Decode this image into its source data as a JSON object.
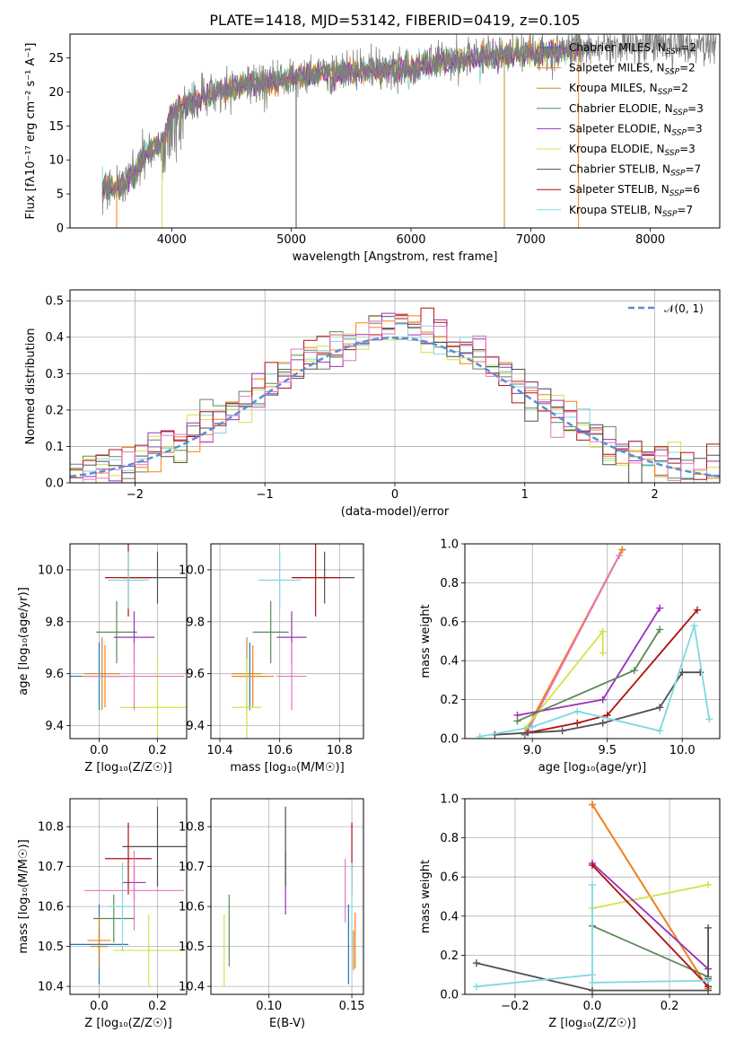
{
  "title": "PLATE=1418, MJD=53142, FIBERID=0419, z=0.105",
  "colors": {
    "Chabrier MILES": "#1f77b4",
    "Salpeter MILES": "#ff7f0e",
    "Kroupa MILES": "#c88a2a",
    "Chabrier ELODIE": "#5a8a5a",
    "Salpeter ELODIE": "#9b30b8",
    "Kroupa ELODIE": "#d4e04a",
    "Chabrier STELIB": "#505050",
    "Salpeter STELIB": "#b01010",
    "Kroupa STELIB": "#7fd8e0",
    "pink": "#e377c2",
    "gaussian": "#5b8fd4",
    "observed": "#808080"
  },
  "chart_data": [
    {
      "id": "spectrum",
      "type": "line",
      "xlabel": "wavelength [Angstrom, rest frame]",
      "ylabel": "Flux [fλ10⁻¹⁷ erg cm⁻² s⁻¹ A⁻¹]",
      "xlim": [
        3150,
        8580
      ],
      "ylim": [
        0,
        28.5
      ],
      "xticks": [
        "4000",
        "5000",
        "6000",
        "7000",
        "8000"
      ],
      "xtick_values": [
        4000,
        5000,
        6000,
        7000,
        8000
      ],
      "yticks": [
        "0",
        "5",
        "10",
        "15",
        "20",
        "25"
      ],
      "ytick_values": [
        0,
        5,
        10,
        15,
        20,
        25
      ],
      "legend": [
        {
          "label": "Chabrier MILES, N",
          "sub": "SSP",
          "tail": "=2"
        },
        {
          "label": "Salpeter MILES, N",
          "sub": "SSP",
          "tail": "=2"
        },
        {
          "label": "Kroupa MILES, N",
          "sub": "SSP",
          "tail": "=2"
        },
        {
          "label": "Chabrier ELODIE, N",
          "sub": "SSP",
          "tail": "=3"
        },
        {
          "label": "Salpeter ELODIE, N",
          "sub": "SSP",
          "tail": "=3"
        },
        {
          "label": "Kroupa ELODIE, N",
          "sub": "SSP",
          "tail": "=3"
        },
        {
          "label": "Chabrier STELIB, N",
          "sub": "SSP",
          "tail": "=7"
        },
        {
          "label": "Salpeter STELIB, N",
          "sub": "SSP",
          "tail": "=6"
        },
        {
          "label": "Kroupa STELIB, N",
          "sub": "SSP",
          "tail": "=7"
        }
      ],
      "legend_placement": "right",
      "continuum_points": [
        [
          3420,
          5.6
        ],
        [
          3600,
          6.2
        ],
        [
          3800,
          11
        ],
        [
          3920,
          12.5
        ],
        [
          4000,
          17
        ],
        [
          4300,
          19.5
        ],
        [
          4600,
          21
        ],
        [
          5000,
          22
        ],
        [
          5200,
          22.7
        ],
        [
          5600,
          23
        ],
        [
          6000,
          23.5
        ],
        [
          6500,
          25
        ],
        [
          7000,
          25.6
        ],
        [
          7500,
          26.4
        ],
        [
          8000,
          27
        ],
        [
          8550,
          26.6
        ]
      ]
    },
    {
      "id": "residuals",
      "type": "histogram",
      "xlabel": "(data-model)/error",
      "ylabel": "Normed distribution",
      "xlim": [
        -2.5,
        2.5
      ],
      "ylim": [
        0,
        0.53
      ],
      "xticks": [
        "−2",
        "−1",
        "0",
        "1",
        "2"
      ],
      "xtick_values": [
        -2,
        -1,
        0,
        1,
        2
      ],
      "yticks": [
        "0.0",
        "0.1",
        "0.2",
        "0.3",
        "0.4",
        "0.5"
      ],
      "ytick_values": [
        0,
        0.1,
        0.2,
        0.3,
        0.4,
        0.5
      ],
      "legend": [
        {
          "label": "𝒩(0, 1)"
        }
      ],
      "legend_placement": "top-right",
      "grid": true
    },
    {
      "id": "age_vs_Z",
      "type": "errorbar",
      "xlabel": "Z [log₁₀(Z/Z☉)]",
      "ylabel": "age  [log₁₀(age/yr)]",
      "xlim": [
        -0.1,
        0.3
      ],
      "ylim": [
        9.35,
        10.1
      ],
      "xticks": [
        "0.0",
        "0.2"
      ],
      "xtick_values": [
        0.0,
        0.2
      ],
      "yticks": [
        "9.4",
        "9.6",
        "9.8",
        "10.0"
      ],
      "ytick_values": [
        9.4,
        9.6,
        9.8,
        10.0
      ],
      "grid": true,
      "points": [
        {
          "c": "Chabrier MILES",
          "x": 0.0,
          "y": 9.59,
          "xe": 0.1,
          "ye": 0.13
        },
        {
          "c": "Salpeter MILES",
          "x": 0.02,
          "y": 9.59,
          "xe": 0.08,
          "ye": 0.12
        },
        {
          "c": "Kroupa MILES",
          "x": 0.01,
          "y": 9.6,
          "xe": 0.06,
          "ye": 0.14
        },
        {
          "c": "Chabrier ELODIE",
          "x": 0.06,
          "y": 9.76,
          "xe": 0.07,
          "ye": 0.12
        },
        {
          "c": "Salpeter ELODIE",
          "x": 0.12,
          "y": 9.74,
          "xe": 0.07,
          "ye": 0.1
        },
        {
          "c": "Kroupa ELODIE",
          "x": 0.2,
          "y": 9.47,
          "xe": 0.13,
          "ye": 0.19
        },
        {
          "c": "Chabrier STELIB",
          "x": 0.2,
          "y": 9.97,
          "xe": 0.12,
          "ye": 0.1
        },
        {
          "c": "Salpeter STELIB",
          "x": 0.1,
          "y": 9.97,
          "xe": 0.08,
          "ye": 0.15
        },
        {
          "c": "Kroupa STELIB",
          "x": 0.1,
          "y": 9.96,
          "xe": 0.07,
          "ye": 0.11
        },
        {
          "c": "pink",
          "x": 0.12,
          "y": 9.59,
          "xe": 0.17,
          "ye": 0.13
        }
      ]
    },
    {
      "id": "age_vs_mass",
      "type": "errorbar",
      "xlabel": "mass [log₁₀(M/M☉)]",
      "ylabel": "",
      "xlim": [
        10.37,
        10.88
      ],
      "ylim": [
        9.35,
        10.1
      ],
      "xticks": [
        "10.4",
        "10.6",
        "10.8"
      ],
      "xtick_values": [
        10.4,
        10.6,
        10.8
      ],
      "yticks": [
        "9.4",
        "9.6",
        "9.8",
        "10.0"
      ],
      "ytick_values": [
        9.4,
        9.6,
        9.8,
        10.0
      ],
      "grid": true,
      "points": [
        {
          "c": "Chabrier MILES",
          "x": 10.5,
          "y": 9.59,
          "xe": 0.06,
          "ye": 0.13
        },
        {
          "c": "Salpeter MILES",
          "x": 10.51,
          "y": 9.59,
          "xe": 0.07,
          "ye": 0.12
        },
        {
          "c": "Kroupa MILES",
          "x": 10.49,
          "y": 9.6,
          "xe": 0.05,
          "ye": 0.14
        },
        {
          "c": "Chabrier ELODIE",
          "x": 10.57,
          "y": 9.76,
          "xe": 0.06,
          "ye": 0.12
        },
        {
          "c": "Salpeter ELODIE",
          "x": 10.64,
          "y": 9.74,
          "xe": 0.05,
          "ye": 0.1
        },
        {
          "c": "Kroupa ELODIE",
          "x": 10.49,
          "y": 9.47,
          "xe": 0.05,
          "ye": 0.19
        },
        {
          "c": "Chabrier STELIB",
          "x": 10.75,
          "y": 9.97,
          "xe": 0.1,
          "ye": 0.1
        },
        {
          "c": "Salpeter STELIB",
          "x": 10.72,
          "y": 9.97,
          "xe": 0.08,
          "ye": 0.15
        },
        {
          "c": "Kroupa STELIB",
          "x": 10.6,
          "y": 9.96,
          "xe": 0.07,
          "ye": 0.11
        },
        {
          "c": "pink",
          "x": 10.64,
          "y": 9.59,
          "xe": 0.05,
          "ye": 0.13
        }
      ]
    },
    {
      "id": "mass_weight_vs_age",
      "type": "line",
      "xlabel": "age  [log₁₀(age/yr)]",
      "ylabel": "mass weight",
      "xlim": [
        8.55,
        10.25
      ],
      "ylim": [
        0,
        1.0
      ],
      "xticks": [
        "9.0",
        "9.5",
        "10.0"
      ],
      "xtick_values": [
        9.0,
        9.5,
        10.0
      ],
      "yticks": [
        "0.0",
        "0.2",
        "0.4",
        "0.6",
        "0.8",
        "1.0"
      ],
      "ytick_values": [
        0,
        0.2,
        0.4,
        0.6,
        0.8,
        1.0
      ],
      "grid": true,
      "series": [
        {
          "c": "Chabrier MILES",
          "x": [
            8.95,
            9.6
          ],
          "y": [
            0.02,
            0.97
          ]
        },
        {
          "c": "Salpeter MILES",
          "x": [
            8.95,
            9.6
          ],
          "y": [
            0.03,
            0.97
          ]
        },
        {
          "c": "pink",
          "x": [
            8.97,
            9.58
          ],
          "y": [
            0.04,
            0.94
          ]
        },
        {
          "c": "Kroupa ELODIE",
          "x": [
            8.95,
            9.47,
            9.47
          ],
          "y": [
            0.05,
            0.55,
            0.44
          ]
        },
        {
          "c": "Salpeter ELODIE",
          "x": [
            8.9,
            9.47,
            9.85
          ],
          "y": [
            0.12,
            0.2,
            0.67
          ]
        },
        {
          "c": "Chabrier ELODIE",
          "x": [
            8.9,
            9.68,
            9.85
          ],
          "y": [
            0.09,
            0.35,
            0.56
          ]
        },
        {
          "c": "Salpeter STELIB",
          "x": [
            8.97,
            9.3,
            9.5,
            10.1
          ],
          "y": [
            0.03,
            0.08,
            0.12,
            0.66
          ]
        },
        {
          "c": "Chabrier STELIB",
          "x": [
            8.75,
            9.2,
            9.47,
            9.85,
            10.0,
            10.12
          ],
          "y": [
            0.02,
            0.04,
            0.08,
            0.16,
            0.34,
            0.34
          ]
        },
        {
          "c": "Kroupa STELIB",
          "x": [
            8.65,
            9.0,
            9.3,
            9.85,
            10.08,
            10.18
          ],
          "y": [
            0.01,
            0.06,
            0.14,
            0.04,
            0.58,
            0.1
          ]
        }
      ]
    },
    {
      "id": "mass_vs_Z",
      "type": "errorbar",
      "xlabel": "Z [log₁₀(Z/Z☉)]",
      "ylabel": "mass [log₁₀(M/M☉)]",
      "xlim": [
        -0.1,
        0.3
      ],
      "ylim": [
        10.38,
        10.87
      ],
      "xticks": [
        "0.0",
        "0.2"
      ],
      "xtick_values": [
        0.0,
        0.2
      ],
      "yticks": [
        "10.4",
        "10.5",
        "10.6",
        "10.7",
        "10.8"
      ],
      "ytick_values": [
        10.4,
        10.5,
        10.6,
        10.7,
        10.8
      ],
      "grid": true,
      "points": [
        {
          "c": "Chabrier MILES",
          "x": 0.0,
          "y": 10.505,
          "xe": 0.1,
          "ye": 0.1
        },
        {
          "c": "Salpeter MILES",
          "x": 0.0,
          "y": 10.515,
          "xe": 0.04,
          "ye": 0.06
        },
        {
          "c": "Kroupa MILES",
          "x": 0.0,
          "y": 10.5,
          "xe": 0.03,
          "ye": 0.05
        },
        {
          "c": "Chabrier ELODIE",
          "x": 0.05,
          "y": 10.57,
          "xe": 0.07,
          "ye": 0.06
        },
        {
          "c": "Salpeter ELODIE",
          "x": 0.12,
          "y": 10.66,
          "xe": 0.04,
          "ye": 0.04
        },
        {
          "c": "Kroupa ELODIE",
          "x": 0.17,
          "y": 10.49,
          "xe": 0.12,
          "ye": 0.09
        },
        {
          "c": "Chabrier STELIB",
          "x": 0.2,
          "y": 10.75,
          "xe": 0.12,
          "ye": 0.1
        },
        {
          "c": "Salpeter STELIB",
          "x": 0.1,
          "y": 10.72,
          "xe": 0.08,
          "ye": 0.09
        },
        {
          "c": "Kroupa STELIB",
          "x": 0.08,
          "y": 10.6,
          "xe": 0.05,
          "ye": 0.11
        },
        {
          "c": "pink",
          "x": 0.12,
          "y": 10.64,
          "xe": 0.17,
          "ye": 0.1
        }
      ]
    },
    {
      "id": "mass_vs_ebv",
      "type": "errorbar",
      "xlabel": "E(B-V)",
      "ylabel": "",
      "xlim": [
        0.065,
        0.157
      ],
      "ylim": [
        10.38,
        10.87
      ],
      "xticks": [
        "0.10",
        "0.15"
      ],
      "xtick_values": [
        0.1,
        0.15
      ],
      "yticks": [
        "10.4",
        "10.5",
        "10.6",
        "10.7",
        "10.8"
      ],
      "ytick_values": [
        10.4,
        10.5,
        10.6,
        10.7,
        10.8
      ],
      "grid": true,
      "points": [
        {
          "c": "Chabrier MILES",
          "x": 0.148,
          "y": 10.505,
          "xe": 0,
          "ye": 0.1
        },
        {
          "c": "Salpeter MILES",
          "x": 0.152,
          "y": 10.515,
          "xe": 0,
          "ye": 0.07
        },
        {
          "c": "Kroupa MILES",
          "x": 0.151,
          "y": 10.49,
          "xe": 0,
          "ye": 0.05
        },
        {
          "c": "Chabrier ELODIE",
          "x": 0.076,
          "y": 10.54,
          "xe": 0,
          "ye": 0.09
        },
        {
          "c": "Salpeter ELODIE",
          "x": 0.11,
          "y": 10.66,
          "xe": 0,
          "ye": 0.08
        },
        {
          "c": "Kroupa ELODIE",
          "x": 0.073,
          "y": 10.49,
          "xe": 0,
          "ye": 0.09
        },
        {
          "c": "Chabrier STELIB",
          "x": 0.11,
          "y": 10.75,
          "xe": 0,
          "ye": 0.1
        },
        {
          "c": "Salpeter STELIB",
          "x": 0.15,
          "y": 10.72,
          "xe": 0,
          "ye": 0.09
        },
        {
          "c": "Kroupa STELIB",
          "x": 0.15,
          "y": 10.6,
          "xe": 0,
          "ye": 0.11
        },
        {
          "c": "pink",
          "x": 0.146,
          "y": 10.64,
          "xe": 0,
          "ye": 0.08
        }
      ]
    },
    {
      "id": "mass_weight_vs_Z",
      "type": "line",
      "xlabel": "Z [log₁₀(Z/Z☉)]",
      "ylabel": "mass weight",
      "xlim": [
        -0.33,
        0.33
      ],
      "ylim": [
        0,
        1.0
      ],
      "xticks": [
        "−0.2",
        "0.0",
        "0.2"
      ],
      "xtick_values": [
        -0.2,
        0.0,
        0.2
      ],
      "yticks": [
        "0.0",
        "0.2",
        "0.4",
        "0.6",
        "0.8",
        "1.0"
      ],
      "ytick_values": [
        0,
        0.2,
        0.4,
        0.6,
        0.8,
        1.0
      ],
      "grid": true,
      "series": [
        {
          "c": "Chabrier MILES",
          "x": [
            0.0,
            0.3
          ],
          "y": [
            0.97,
            0.03
          ]
        },
        {
          "c": "Salpeter MILES",
          "x": [
            0.0,
            0.3
          ],
          "y": [
            0.97,
            0.03
          ]
        },
        {
          "c": "Kroupa ELODIE",
          "x": [
            0.0,
            0.3
          ],
          "y": [
            0.44,
            0.56
          ]
        },
        {
          "c": "Salpeter ELODIE",
          "x": [
            0.0,
            0.3
          ],
          "y": [
            0.67,
            0.13
          ]
        },
        {
          "c": "Chabrier ELODIE",
          "x": [
            0.0,
            0.3
          ],
          "y": [
            0.35,
            0.09
          ]
        },
        {
          "c": "Salpeter STELIB",
          "x": [
            0.0,
            0.3
          ],
          "y": [
            0.66,
            0.04
          ]
        },
        {
          "c": "Chabrier STELIB",
          "x": [
            -0.3,
            0.0,
            0.3,
            0.3,
            0.3
          ],
          "y": [
            0.16,
            0.02,
            0.02,
            0.34,
            0.08
          ]
        },
        {
          "c": "Kroupa STELIB",
          "x": [
            -0.3,
            0.0,
            0.0,
            0.0,
            0.3
          ],
          "y": [
            0.04,
            0.1,
            0.56,
            0.06,
            0.07
          ]
        }
      ]
    }
  ]
}
